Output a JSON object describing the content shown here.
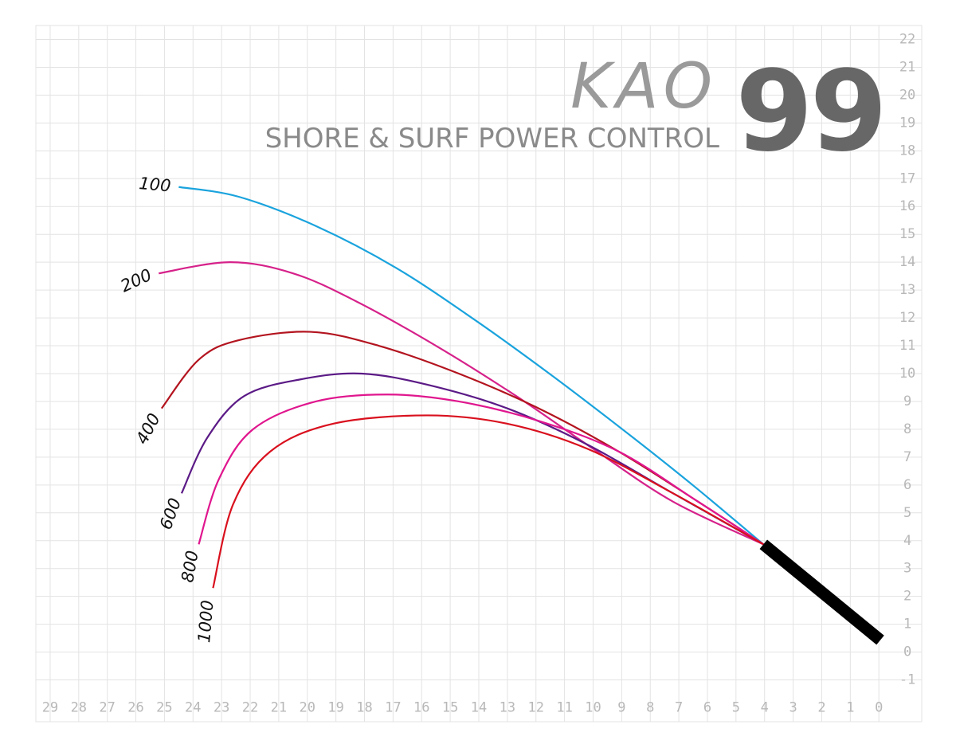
{
  "chart_data": {
    "type": "line",
    "brand": "KAO",
    "model": "99",
    "subtitle": "SHORE & SURF POWER CONTROL",
    "xlim": [
      29.5,
      -1.5
    ],
    "ylim": [
      -2.5,
      22.5
    ],
    "xticks": [
      29,
      28,
      27,
      26,
      25,
      24,
      23,
      22,
      21,
      20,
      19,
      18,
      17,
      16,
      15,
      14,
      13,
      12,
      11,
      10,
      9,
      8,
      7,
      6,
      5,
      4,
      3,
      2,
      1,
      0
    ],
    "yticks": [
      22,
      21,
      20,
      19,
      18,
      17,
      16,
      15,
      14,
      13,
      12,
      11,
      10,
      9,
      8,
      7,
      6,
      5,
      4,
      3,
      2,
      1,
      0,
      -1
    ],
    "grid": true,
    "series": [
      {
        "name": "100",
        "color": "#1aa3dd",
        "x": [
          24.5,
          22.4,
          19.7,
          16.9,
          14.1,
          11.4,
          8.6,
          6.4,
          4.04
        ],
        "y": [
          16.7,
          16.35,
          15.3,
          13.8,
          11.9,
          9.9,
          7.7,
          5.9,
          3.87
        ]
      },
      {
        "name": "200",
        "color": "#d6218a",
        "x": [
          25.2,
          22.7,
          20.5,
          18.3,
          15.5,
          12.7,
          10.0,
          7.2,
          4.04
        ],
        "y": [
          13.6,
          14.0,
          13.6,
          12.6,
          11.0,
          9.2,
          7.3,
          5.4,
          3.87
        ]
      },
      {
        "name": "400",
        "color": "#b3141f",
        "x": [
          25.1,
          23.8,
          22.4,
          19.9,
          17.5,
          14.7,
          11.9,
          9.1,
          6.4,
          4.04
        ],
        "y": [
          8.75,
          10.5,
          11.2,
          11.5,
          11.0,
          10.0,
          8.75,
          7.2,
          5.45,
          3.87
        ]
      },
      {
        "name": "600",
        "color": "#5b1a86",
        "x": [
          24.4,
          23.5,
          22.2,
          20.2,
          18.1,
          15.8,
          13.0,
          10.2,
          7.2,
          4.04
        ],
        "y": [
          5.7,
          7.7,
          9.2,
          9.8,
          10.0,
          9.6,
          8.75,
          7.45,
          5.7,
          3.87
        ]
      },
      {
        "name": "800",
        "color": "#e0168e",
        "x": [
          23.8,
          23.1,
          21.9,
          19.7,
          17.2,
          14.7,
          11.9,
          9.1,
          6.4,
          4.04
        ],
        "y": [
          3.87,
          6.2,
          8.0,
          9.0,
          9.25,
          9.0,
          8.3,
          7.2,
          5.45,
          3.87
        ]
      },
      {
        "name": "1000",
        "color": "#d9101e",
        "x": [
          23.3,
          22.6,
          21.3,
          19.1,
          15.8,
          13.0,
          10.2,
          7.2,
          4.04
        ],
        "y": [
          2.3,
          5.3,
          7.2,
          8.2,
          8.5,
          8.2,
          7.3,
          5.7,
          3.87
        ]
      }
    ],
    "butt": {
      "color": "#000000",
      "x": [
        4.04,
        -0.05
      ],
      "y": [
        3.87,
        0.43
      ]
    }
  }
}
